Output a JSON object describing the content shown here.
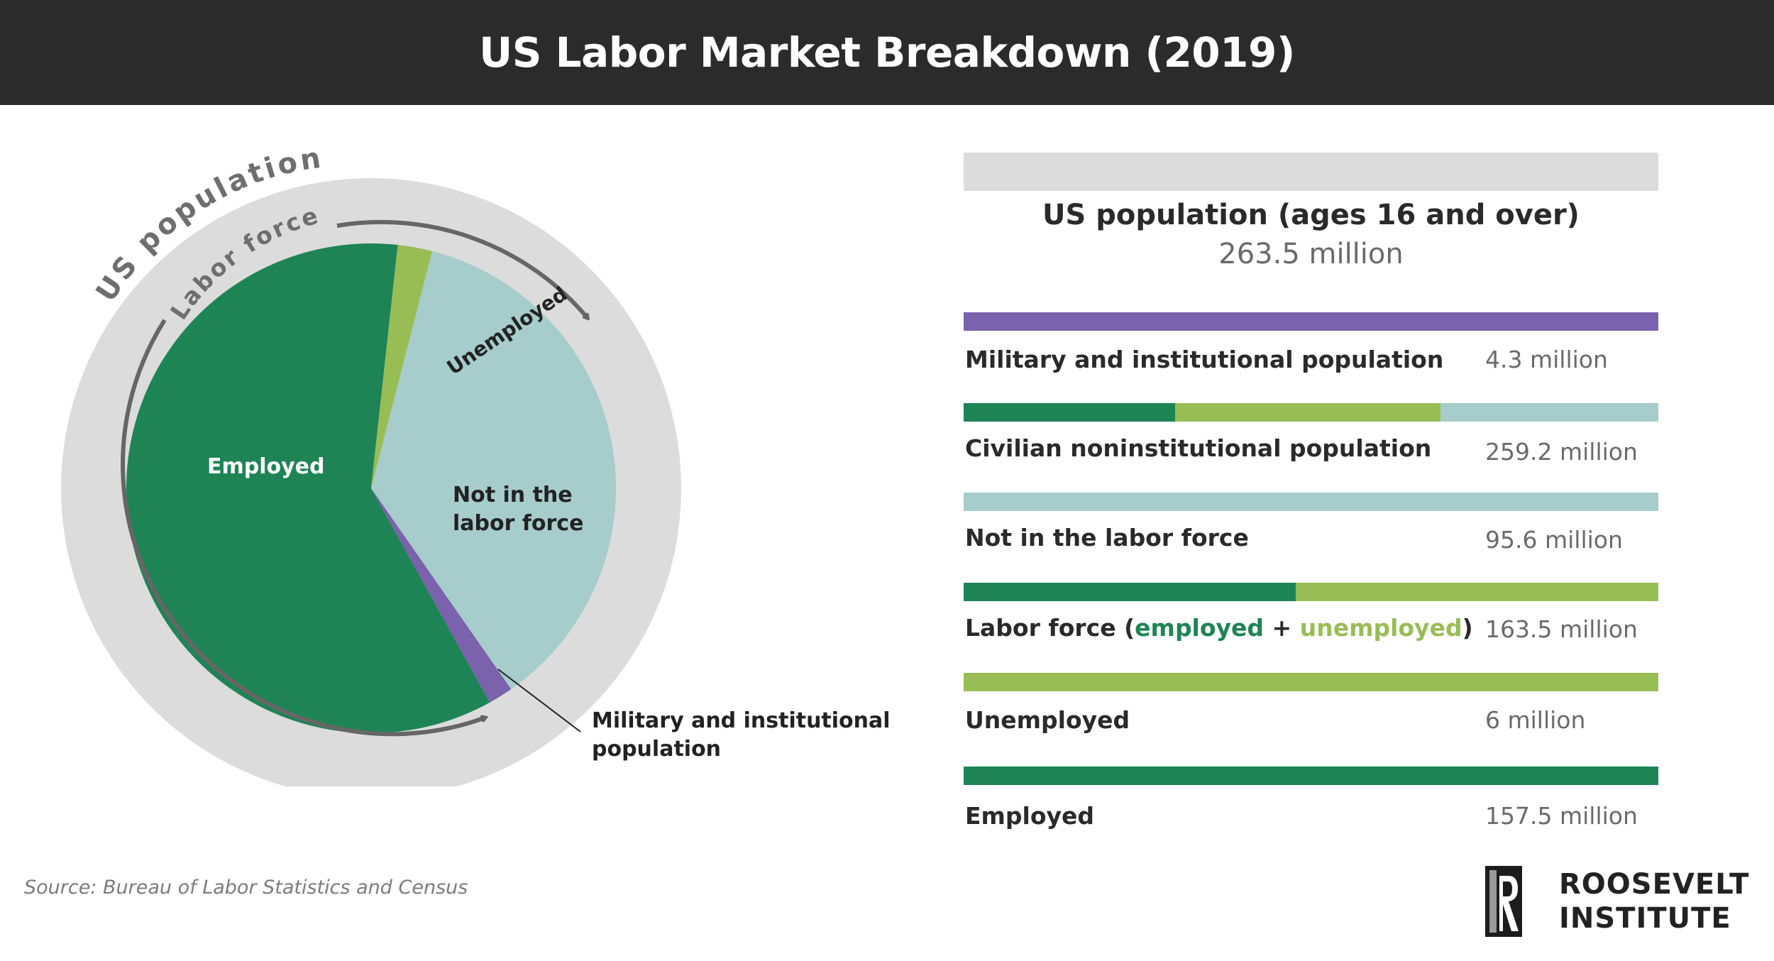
{
  "title": "US Labor Market Breakdown (2019)",
  "colors": {
    "employed": "#1e8456",
    "unemployed": "#98bd55",
    "not_in_labor_force": "#a6cccb",
    "military": "#7a62ac",
    "outer_ring": "#dcdcdc",
    "header_bg": "#2c2b2b"
  },
  "pie": {
    "outer_ring_label": "US population",
    "inner_arc_label": "Labor force",
    "labels": {
      "employed": "Employed",
      "unemployed": "Unemployed",
      "not_in_labor_force_line1": "Not in the",
      "not_in_labor_force_line2": "labor force",
      "military_line1": "Military and institutional",
      "military_line2": "population"
    }
  },
  "table": {
    "population_title": "US population (ages 16 and over)",
    "population_value": "263.5 million",
    "rows": [
      {
        "label": "Military and institutional population",
        "value": "4.3 million"
      },
      {
        "label": "Civilian noninstitutional population",
        "value": "259.2 million"
      },
      {
        "label": "Not in the labor force",
        "value": "95.6 million"
      },
      {
        "label_prefix": "Labor force (",
        "label_employed": "employed",
        "label_plus": " + ",
        "label_unemployed": "unemployed",
        "label_suffix": ")",
        "value": "163.5 million"
      },
      {
        "label": "Unemployed",
        "value": "6 million"
      },
      {
        "label": "Employed",
        "value": "157.5 million"
      }
    ]
  },
  "chart_data": {
    "type": "pie",
    "title": "US Labor Market Breakdown (2019)",
    "units": "million",
    "total": 263.5,
    "slices": [
      {
        "name": "Employed",
        "value": 157.5
      },
      {
        "name": "Unemployed",
        "value": 6
      },
      {
        "name": "Not in the labor force",
        "value": 95.6
      },
      {
        "name": "Military and institutional population",
        "value": 4.3
      }
    ]
  },
  "source": "Source: Bureau of Labor Statistics and Census",
  "logo": {
    "line1": "ROOSEVELT",
    "line2": "INSTITUTE"
  }
}
